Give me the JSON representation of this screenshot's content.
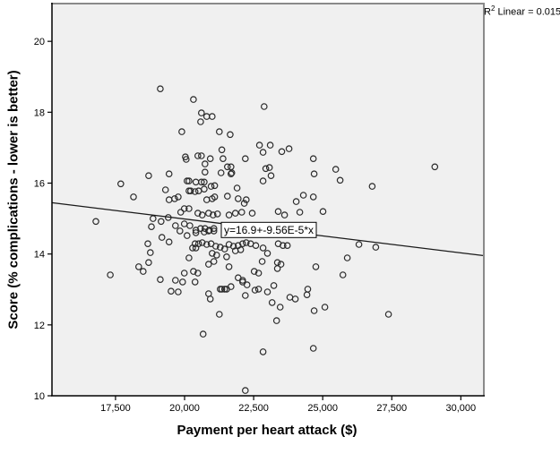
{
  "labels": {
    "r2_base": "R",
    "r2_sup": "2",
    "r2_rest": " Linear = 0.015"
  },
  "colors": {
    "plot_bg": "#f0f0f0",
    "panel_border": "#8a8a8a",
    "axis": "#000000",
    "marker": "#2b2b2b",
    "regression_line": "#1a1a1a",
    "label_box_bg": "#ffffff",
    "label_box_border": "#000000",
    "text": "#000000"
  },
  "chart_data": {
    "type": "scatter",
    "title": "",
    "xlabel": "Payment per heart attack ($)",
    "ylabel": "Score (% complications - lower is better)",
    "x_ticks": [
      17500,
      20000,
      22500,
      25000,
      27500,
      30000
    ],
    "x_tick_labels": [
      "17,500",
      "20,000",
      "22,500",
      "25,000",
      "27,500",
      "30,000"
    ],
    "y_ticks": [
      10,
      12,
      14,
      16,
      18,
      20
    ],
    "y_tick_labels": [
      "10",
      "12",
      "14",
      "16",
      "18",
      "20"
    ],
    "xlim": [
      15200,
      30800
    ],
    "ylim": [
      10,
      21.04
    ],
    "grid": false,
    "legend": "none",
    "annotation_r2": "R2 Linear = 0.015",
    "regression": {
      "equation_label": "y=16.9+-9.56E-5*x",
      "intercept": 16.9,
      "slope": -9.56e-05,
      "r2": 0.015,
      "label_anchor": {
        "x": 23050,
        "y": 14.68
      }
    },
    "points": [
      [
        19120,
        18.66
      ],
      [
        20320,
        18.36
      ],
      [
        20610,
        17.98
      ],
      [
        20800,
        17.88
      ],
      [
        21000,
        17.88
      ],
      [
        20580,
        17.73
      ],
      [
        19900,
        17.45
      ],
      [
        21260,
        17.45
      ],
      [
        21650,
        17.37
      ],
      [
        22880,
        18.16
      ],
      [
        21350,
        16.94
      ],
      [
        20030,
        16.74
      ],
      [
        20060,
        16.67
      ],
      [
        20480,
        16.77
      ],
      [
        20610,
        16.77
      ],
      [
        20930,
        16.69
      ],
      [
        21390,
        16.69
      ],
      [
        21550,
        16.46
      ],
      [
        21680,
        16.46
      ],
      [
        21710,
        16.29
      ],
      [
        20740,
        16.54
      ],
      [
        21320,
        16.29
      ],
      [
        19440,
        16.26
      ],
      [
        18700,
        16.21
      ],
      [
        17690,
        15.98
      ],
      [
        20160,
        16.06
      ],
      [
        20710,
        16.03
      ],
      [
        21090,
        15.93
      ],
      [
        22710,
        17.07
      ],
      [
        23100,
        17.07
      ],
      [
        22840,
        16.87
      ],
      [
        23520,
        16.89
      ],
      [
        23780,
        16.97
      ],
      [
        22200,
        16.69
      ],
      [
        23070,
        16.44
      ],
      [
        22940,
        16.41
      ],
      [
        24660,
        16.69
      ],
      [
        24690,
        16.26
      ],
      [
        25470,
        16.39
      ],
      [
        23130,
        16.21
      ],
      [
        22840,
        16.06
      ],
      [
        25630,
        16.08
      ],
      [
        26790,
        15.91
      ],
      [
        29060,
        16.46
      ],
      [
        18150,
        15.61
      ],
      [
        19310,
        15.81
      ],
      [
        20160,
        15.78
      ],
      [
        16790,
        14.92
      ],
      [
        18860,
        15.0
      ],
      [
        19150,
        14.92
      ],
      [
        18800,
        14.77
      ],
      [
        19180,
        14.47
      ],
      [
        18670,
        14.29
      ],
      [
        18760,
        14.04
      ],
      [
        18700,
        13.76
      ],
      [
        18340,
        13.64
      ],
      [
        18500,
        13.51
      ],
      [
        17310,
        13.41
      ],
      [
        19120,
        13.28
      ],
      [
        24040,
        15.48
      ],
      [
        24300,
        15.66
      ],
      [
        24660,
        15.61
      ],
      [
        25010,
        15.2
      ],
      [
        24170,
        15.18
      ],
      [
        23390,
        15.2
      ],
      [
        23620,
        15.1
      ],
      [
        22450,
        15.15
      ],
      [
        22160,
        15.43
      ],
      [
        26310,
        14.27
      ],
      [
        26920,
        14.19
      ],
      [
        25890,
        13.89
      ],
      [
        24750,
        13.64
      ],
      [
        25730,
        13.41
      ],
      [
        23390,
        14.29
      ],
      [
        23560,
        14.24
      ],
      [
        23720,
        14.24
      ],
      [
        22390,
        14.29
      ],
      [
        22580,
        14.24
      ],
      [
        22840,
        14.17
      ],
      [
        23000,
        14.02
      ],
      [
        22810,
        13.79
      ],
      [
        22520,
        13.51
      ],
      [
        22680,
        13.46
      ],
      [
        22100,
        13.26
      ],
      [
        23230,
        13.11
      ],
      [
        23360,
        13.76
      ],
      [
        23490,
        13.71
      ],
      [
        23360,
        13.59
      ],
      [
        24460,
        13.01
      ],
      [
        19770,
        12.93
      ],
      [
        20930,
        12.73
      ],
      [
        21260,
        12.3
      ],
      [
        20670,
        11.74
      ],
      [
        22200,
        12.83
      ],
      [
        22550,
        12.98
      ],
      [
        22680,
        13.01
      ],
      [
        23000,
        12.93
      ],
      [
        23170,
        12.63
      ],
      [
        23460,
        12.5
      ],
      [
        23810,
        12.78
      ],
      [
        24010,
        12.73
      ],
      [
        24430,
        12.85
      ],
      [
        24690,
        12.4
      ],
      [
        25080,
        12.5
      ],
      [
        23330,
        12.12
      ],
      [
        27380,
        12.3
      ],
      [
        22840,
        11.24
      ],
      [
        24660,
        11.34
      ],
      [
        22200,
        10.15
      ],
      [
        21290,
        13.01
      ],
      [
        21450,
        13.01
      ],
      [
        21680,
        13.08
      ],
      [
        20090,
        16.06
      ],
      [
        20410,
        16.03
      ],
      [
        20610,
        16.03
      ],
      [
        20220,
        15.78
      ],
      [
        20380,
        15.76
      ],
      [
        20510,
        15.78
      ],
      [
        20710,
        15.83
      ],
      [
        20960,
        15.91
      ],
      [
        21090,
        15.61
      ],
      [
        19640,
        15.56
      ],
      [
        19770,
        15.61
      ],
      [
        19440,
        15.53
      ],
      [
        20800,
        15.53
      ],
      [
        21000,
        15.56
      ],
      [
        21550,
        15.63
      ],
      [
        21900,
        15.86
      ],
      [
        21940,
        15.56
      ],
      [
        22230,
        15.53
      ],
      [
        19990,
        15.28
      ],
      [
        20160,
        15.28
      ],
      [
        19860,
        15.18
      ],
      [
        20480,
        15.15
      ],
      [
        20640,
        15.1
      ],
      [
        20870,
        15.15
      ],
      [
        21030,
        15.1
      ],
      [
        21190,
        15.13
      ],
      [
        21610,
        15.1
      ],
      [
        21840,
        15.15
      ],
      [
        22070,
        15.18
      ],
      [
        19670,
        14.8
      ],
      [
        19990,
        14.85
      ],
      [
        20190,
        14.8
      ],
      [
        20410,
        14.67
      ],
      [
        20580,
        14.72
      ],
      [
        20740,
        14.72
      ],
      [
        20900,
        14.67
      ],
      [
        21060,
        14.72
      ],
      [
        19410,
        15.03
      ],
      [
        19830,
        14.65
      ],
      [
        20090,
        14.52
      ],
      [
        20410,
        14.6
      ],
      [
        20710,
        14.62
      ],
      [
        20870,
        14.65
      ],
      [
        21060,
        14.65
      ],
      [
        20380,
        14.29
      ],
      [
        20510,
        14.29
      ],
      [
        20640,
        14.32
      ],
      [
        20800,
        14.27
      ],
      [
        20960,
        14.29
      ],
      [
        19440,
        14.34
      ],
      [
        20290,
        14.17
      ],
      [
        20410,
        14.17
      ],
      [
        21130,
        14.22
      ],
      [
        21290,
        14.19
      ],
      [
        21450,
        14.14
      ],
      [
        21610,
        14.27
      ],
      [
        21770,
        14.22
      ],
      [
        21940,
        14.24
      ],
      [
        22100,
        14.29
      ],
      [
        22230,
        14.32
      ],
      [
        21840,
        14.09
      ],
      [
        22030,
        14.12
      ],
      [
        21000,
        14.02
      ],
      [
        21160,
        13.97
      ],
      [
        21520,
        13.92
      ],
      [
        20160,
        13.89
      ],
      [
        20870,
        13.71
      ],
      [
        21060,
        13.79
      ],
      [
        21610,
        13.64
      ],
      [
        19990,
        13.46
      ],
      [
        20320,
        13.51
      ],
      [
        20480,
        13.46
      ],
      [
        19670,
        13.26
      ],
      [
        19930,
        13.21
      ],
      [
        20380,
        13.21
      ],
      [
        21350,
        13.01
      ],
      [
        21520,
        13.01
      ],
      [
        21940,
        13.33
      ],
      [
        22100,
        13.21
      ],
      [
        22260,
        13.13
      ],
      [
        19510,
        12.95
      ],
      [
        20870,
        12.88
      ],
      [
        21680,
        16.26
      ],
      [
        20740,
        16.31
      ]
    ]
  }
}
